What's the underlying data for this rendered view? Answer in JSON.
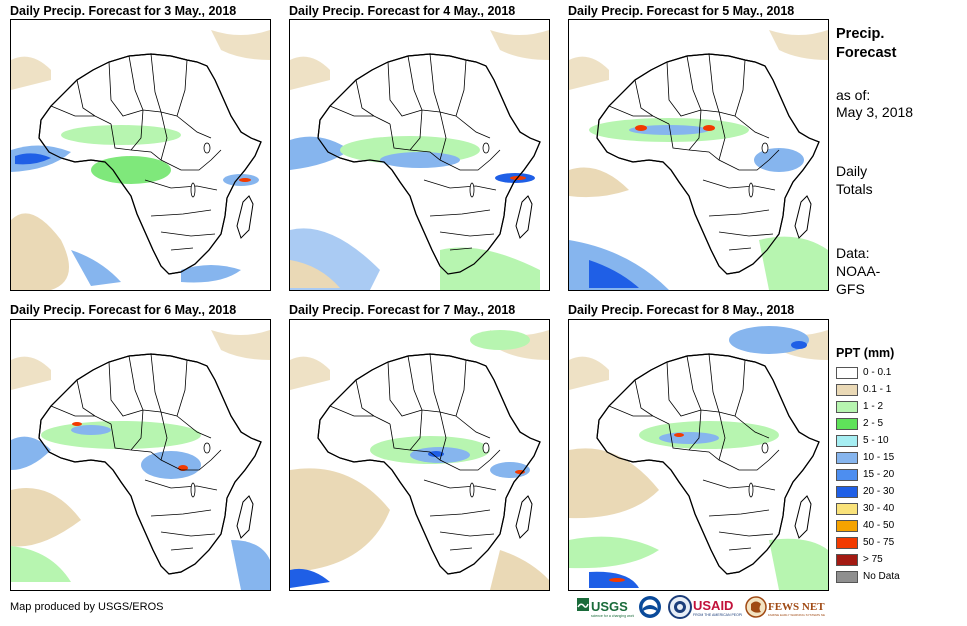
{
  "panels": [
    {
      "title": "Daily Precip. Forecast for 3 May., 2018"
    },
    {
      "title": "Daily Precip. Forecast for 4 May., 2018"
    },
    {
      "title": "Daily Precip. Forecast for 5 May., 2018"
    },
    {
      "title": "Daily Precip. Forecast for 6 May., 2018"
    },
    {
      "title": "Daily Precip. Forecast for 7 May., 2018"
    },
    {
      "title": "Daily Precip. Forecast for 8 May., 2018"
    }
  ],
  "side": {
    "title_line1": "Precip.",
    "title_line2": "Forecast",
    "asof_label": "as of:",
    "asof_date": "May 3, 2018",
    "totals_line1": "Daily",
    "totals_line2": "Totals",
    "data_line1": "Data:",
    "data_line2": "NOAA-",
    "data_line3": "GFS"
  },
  "legend": {
    "title": "PPT (mm)",
    "items": [
      {
        "label": "0 - 0.1",
        "color": "#ffffff"
      },
      {
        "label": "0.1 - 1",
        "color": "#ead9b6"
      },
      {
        "label": "1 - 2",
        "color": "#b7f5b0"
      },
      {
        "label": "2 - 5",
        "color": "#5fe25a"
      },
      {
        "label": "5 - 10",
        "color": "#a6eef2"
      },
      {
        "label": "10 - 15",
        "color": "#86b5ee"
      },
      {
        "label": "15 - 20",
        "color": "#4d8ef0"
      },
      {
        "label": "20 - 30",
        "color": "#1f5fe6"
      },
      {
        "label": "30 - 40",
        "color": "#f9e27a"
      },
      {
        "label": "40 - 50",
        "color": "#f5a300"
      },
      {
        "label": "50 - 75",
        "color": "#f23a00"
      },
      {
        "label": "> 75",
        "color": "#a31a12"
      },
      {
        "label": "No Data",
        "color": "#8f8f8f"
      }
    ]
  },
  "credit": "Map produced by USGS/EROS",
  "logos": {
    "usgs": "USGS",
    "usaid": "USAID",
    "fewsnet": "FEWS NET"
  },
  "colors": {
    "tan": "#ead9b6",
    "light_green": "#b7f5b0",
    "green": "#5fe25a",
    "light_blue": "#86b5ee",
    "blue": "#1f5fe6",
    "red": "#f23a00"
  }
}
